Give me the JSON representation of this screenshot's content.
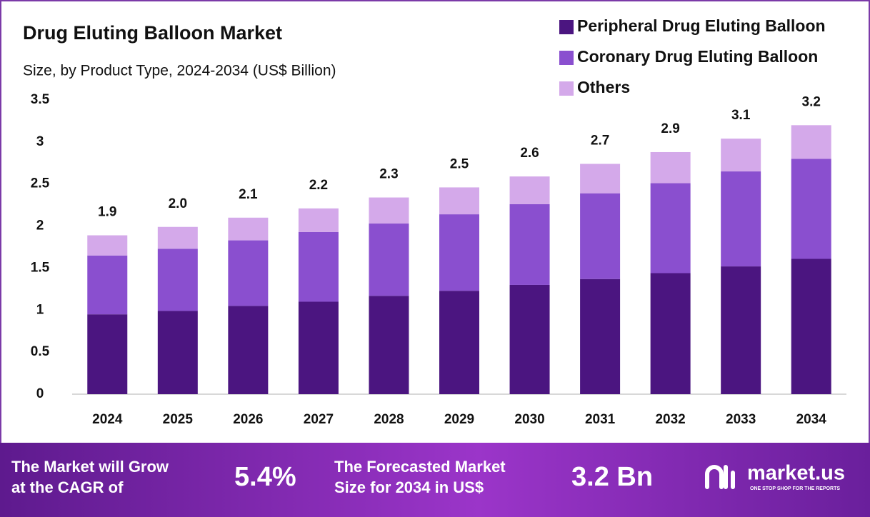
{
  "chart_data": {
    "type": "stacked_bar",
    "title": "Drug Eluting Balloon Market",
    "subtitle": "Size, by Product Type, 2024-2034 (US$ Billion)",
    "categories": [
      "2024",
      "2025",
      "2026",
      "2027",
      "2028",
      "2029",
      "2030",
      "2031",
      "2032",
      "2033",
      "2034"
    ],
    "series": [
      {
        "name": "Peripheral Drug Eluting Balloon",
        "color": "#4b1580",
        "values": [
          0.95,
          0.99,
          1.05,
          1.1,
          1.17,
          1.23,
          1.3,
          1.37,
          1.44,
          1.52,
          1.61
        ]
      },
      {
        "name": "Coronary Drug Eluting Balloon",
        "color": "#8a4fcf",
        "values": [
          0.7,
          0.74,
          0.78,
          0.83,
          0.86,
          0.91,
          0.96,
          1.02,
          1.07,
          1.13,
          1.19
        ]
      },
      {
        "name": "Others",
        "color": "#d4a9ea",
        "values": [
          0.24,
          0.26,
          0.27,
          0.28,
          0.31,
          0.32,
          0.33,
          0.35,
          0.37,
          0.39,
          0.4
        ]
      }
    ],
    "totals": {
      "values": [
        1.9,
        2.0,
        2.1,
        2.2,
        2.3,
        2.5,
        2.6,
        2.7,
        2.9,
        3.1,
        3.2
      ],
      "value_labels": [
        "1.9",
        "2.0",
        "2.1",
        "2.2",
        "2.3",
        "2.5",
        "2.6",
        "2.7",
        "2.9",
        "3.1",
        "3.2"
      ]
    },
    "ylim": [
      0,
      3.5
    ],
    "yticks": [
      0,
      0.5,
      1,
      1.5,
      2,
      2.5,
      3,
      3.5
    ],
    "grid": false,
    "legend": "top-right"
  },
  "footer": {
    "cagr_text": [
      "The Market will Grow",
      "at the CAGR of"
    ],
    "cagr_value": "5.4%",
    "forecast_text": [
      "The Forecasted Market",
      "Size for 2034 in US$"
    ],
    "forecast_value": "3.2 Bn",
    "brand": "market.us",
    "tagline": "ONE STOP SHOP FOR THE REPORTS"
  }
}
